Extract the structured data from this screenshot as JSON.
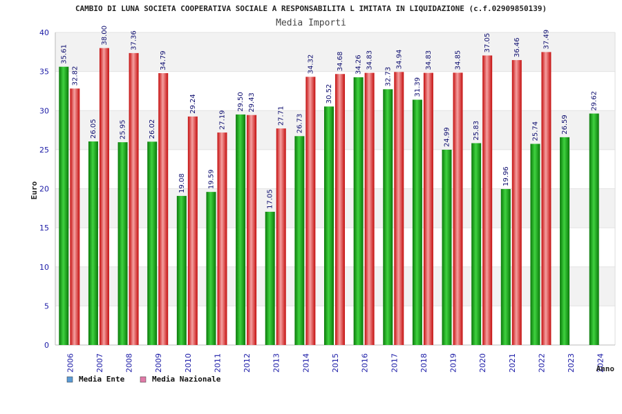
{
  "chart_data": {
    "type": "bar",
    "title": "CAMBIO DI LUNA SOCIETA COOPERATIVA SOCIALE A RESPONSABILITA L IMITATA IN LIQUIDAZIONE (c.f.02909850139)",
    "subtitle": "Media Importi",
    "xlabel": "Anno",
    "ylabel": "Euro",
    "ylim": [
      0,
      40
    ],
    "yticks": [
      0,
      5,
      10,
      15,
      20,
      25,
      30,
      35,
      40
    ],
    "grid": true,
    "legend_position": "bottom-left",
    "categories": [
      "2006",
      "2007",
      "2008",
      "2009",
      "2010",
      "2011",
      "2012",
      "2013",
      "2014",
      "2015",
      "2016",
      "2017",
      "2018",
      "2019",
      "2020",
      "2021",
      "2022",
      "2023",
      "2024"
    ],
    "series": [
      {
        "name": "Media Ente",
        "color": "#1aa01a",
        "values": [
          35.61,
          26.05,
          25.95,
          26.02,
          19.08,
          19.59,
          29.5,
          17.05,
          26.73,
          30.52,
          34.26,
          32.73,
          31.39,
          24.99,
          25.83,
          19.96,
          25.74,
          26.59,
          29.62
        ],
        "labels": [
          "35.61",
          "26.05",
          "25.95",
          "26.02",
          "19.08",
          "19.59",
          "29.50",
          "17.05",
          "26.73",
          "30.52",
          "34.26",
          "32.73",
          "31.39",
          "24.99",
          "25.83",
          "19.96",
          "25.74",
          "26.59",
          "29.62"
        ]
      },
      {
        "name": "Media Nazionale",
        "color": "#e02020",
        "values": [
          32.82,
          38.0,
          37.36,
          34.79,
          29.24,
          27.19,
          29.43,
          27.71,
          34.32,
          34.68,
          34.83,
          34.94,
          34.83,
          34.85,
          37.05,
          36.46,
          37.49,
          null,
          null
        ],
        "labels": [
          "32.82",
          "38.00",
          "37.36",
          "34.79",
          "29.24",
          "27.19",
          "29.43",
          "27.71",
          "34.32",
          "34.68",
          "34.83",
          "34.94",
          "34.83",
          "34.85",
          "37.05",
          "36.46",
          "37.49",
          "",
          ""
        ]
      }
    ],
    "legend": [
      {
        "label": "Media Ente",
        "swatch": "#5b9bd5"
      },
      {
        "label": "Media Nazionale",
        "swatch": "#e07aa8"
      }
    ]
  }
}
